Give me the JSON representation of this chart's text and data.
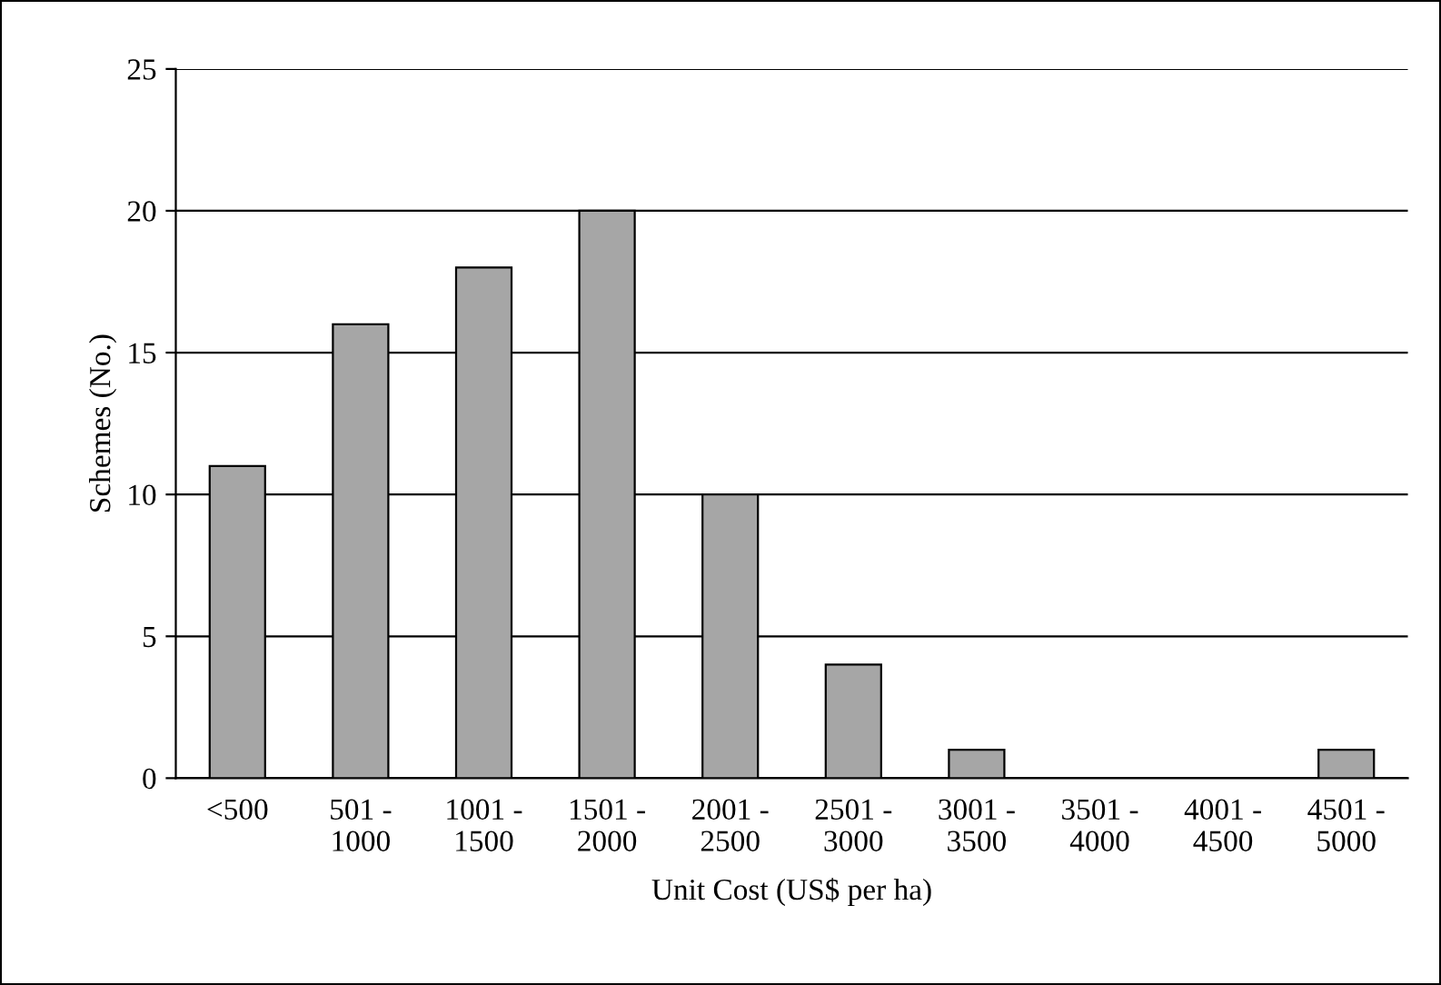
{
  "chart_data": {
    "type": "bar",
    "xlabel": "Unit Cost (US$ per ha)",
    "ylabel": "Schemes (No.)",
    "categories": [
      "<500",
      "501 -\n1000",
      "1001 -\n1500",
      "1501 -\n2000",
      "2001 -\n2500",
      "2501 -\n3000",
      "3001 -\n3500",
      "3501 -\n4000",
      "4001 -\n4500",
      "4501 -\n5000"
    ],
    "values": [
      11,
      16,
      18,
      20,
      10,
      4,
      1,
      0,
      0,
      1
    ],
    "color": "#a6a6a6",
    "ylim": [
      0,
      25
    ],
    "yticks": [
      0,
      5,
      10,
      15,
      20,
      25
    ],
    "grid": "y",
    "legend": false
  }
}
